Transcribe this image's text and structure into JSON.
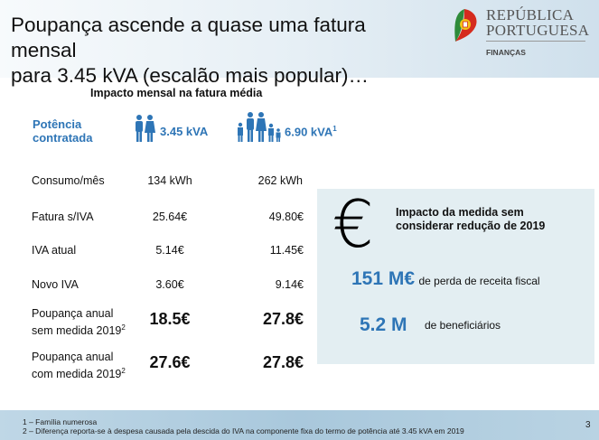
{
  "header": {
    "title_line1": "Poupança ascende a quase uma fatura mensal",
    "title_line2": "para 3.45 kVA (escalão mais popular)…",
    "logo_line1": "REPÚBLICA",
    "logo_line2": "PORTUGUESA",
    "logo_sub": "FINANÇAS"
  },
  "table": {
    "subtitle": "Impacto mensal na fatura média",
    "potencia_line1": "Potência",
    "potencia_line2": "contratada",
    "col1": {
      "icon": "couple-icon",
      "label": "3.45 kVA"
    },
    "col2": {
      "icon": "family-icon",
      "label": "6.90 kVA",
      "sup": "1"
    },
    "rows": [
      {
        "label": "Consumo/mês",
        "v1": "134 kWh",
        "v2": "262 kWh"
      },
      {
        "label": "Fatura s/IVA",
        "v1": "25.64€",
        "v2": "49.80€"
      },
      {
        "label": "IVA atual",
        "v1": "5.14€",
        "v2": "11.45€"
      },
      {
        "label": "Novo IVA",
        "v1": "3.60€",
        "v2": "9.14€"
      },
      {
        "label1": "Poupança anual",
        "label2": "sem medida 2019",
        "sup": "2",
        "v1": "18.5€",
        "v2": "27.8€"
      },
      {
        "label1": "Poupança anual",
        "label2": "com medida 2019",
        "sup": "2",
        "v1": "27.6€",
        "v2": "27.8€"
      }
    ]
  },
  "panel": {
    "icon": "euro-icon",
    "euro_glyph": "€",
    "title_line1": "Impacto da medida sem",
    "title_line2": "considerar redução de 2019",
    "stat1_value": "151 M€",
    "stat1_desc": "de perda de receita fiscal",
    "stat2_value": "5.2 M",
    "stat2_desc": "de beneficiários"
  },
  "footer": {
    "note1": "1 – Família numerosa",
    "note2": "2 – Diferença reporta-se à despesa causada pela descida do IVA na componente fixa do termo de potência até 3.45 kVA em 2019",
    "page": "3"
  },
  "colors": {
    "accent": "#2e75b6"
  }
}
